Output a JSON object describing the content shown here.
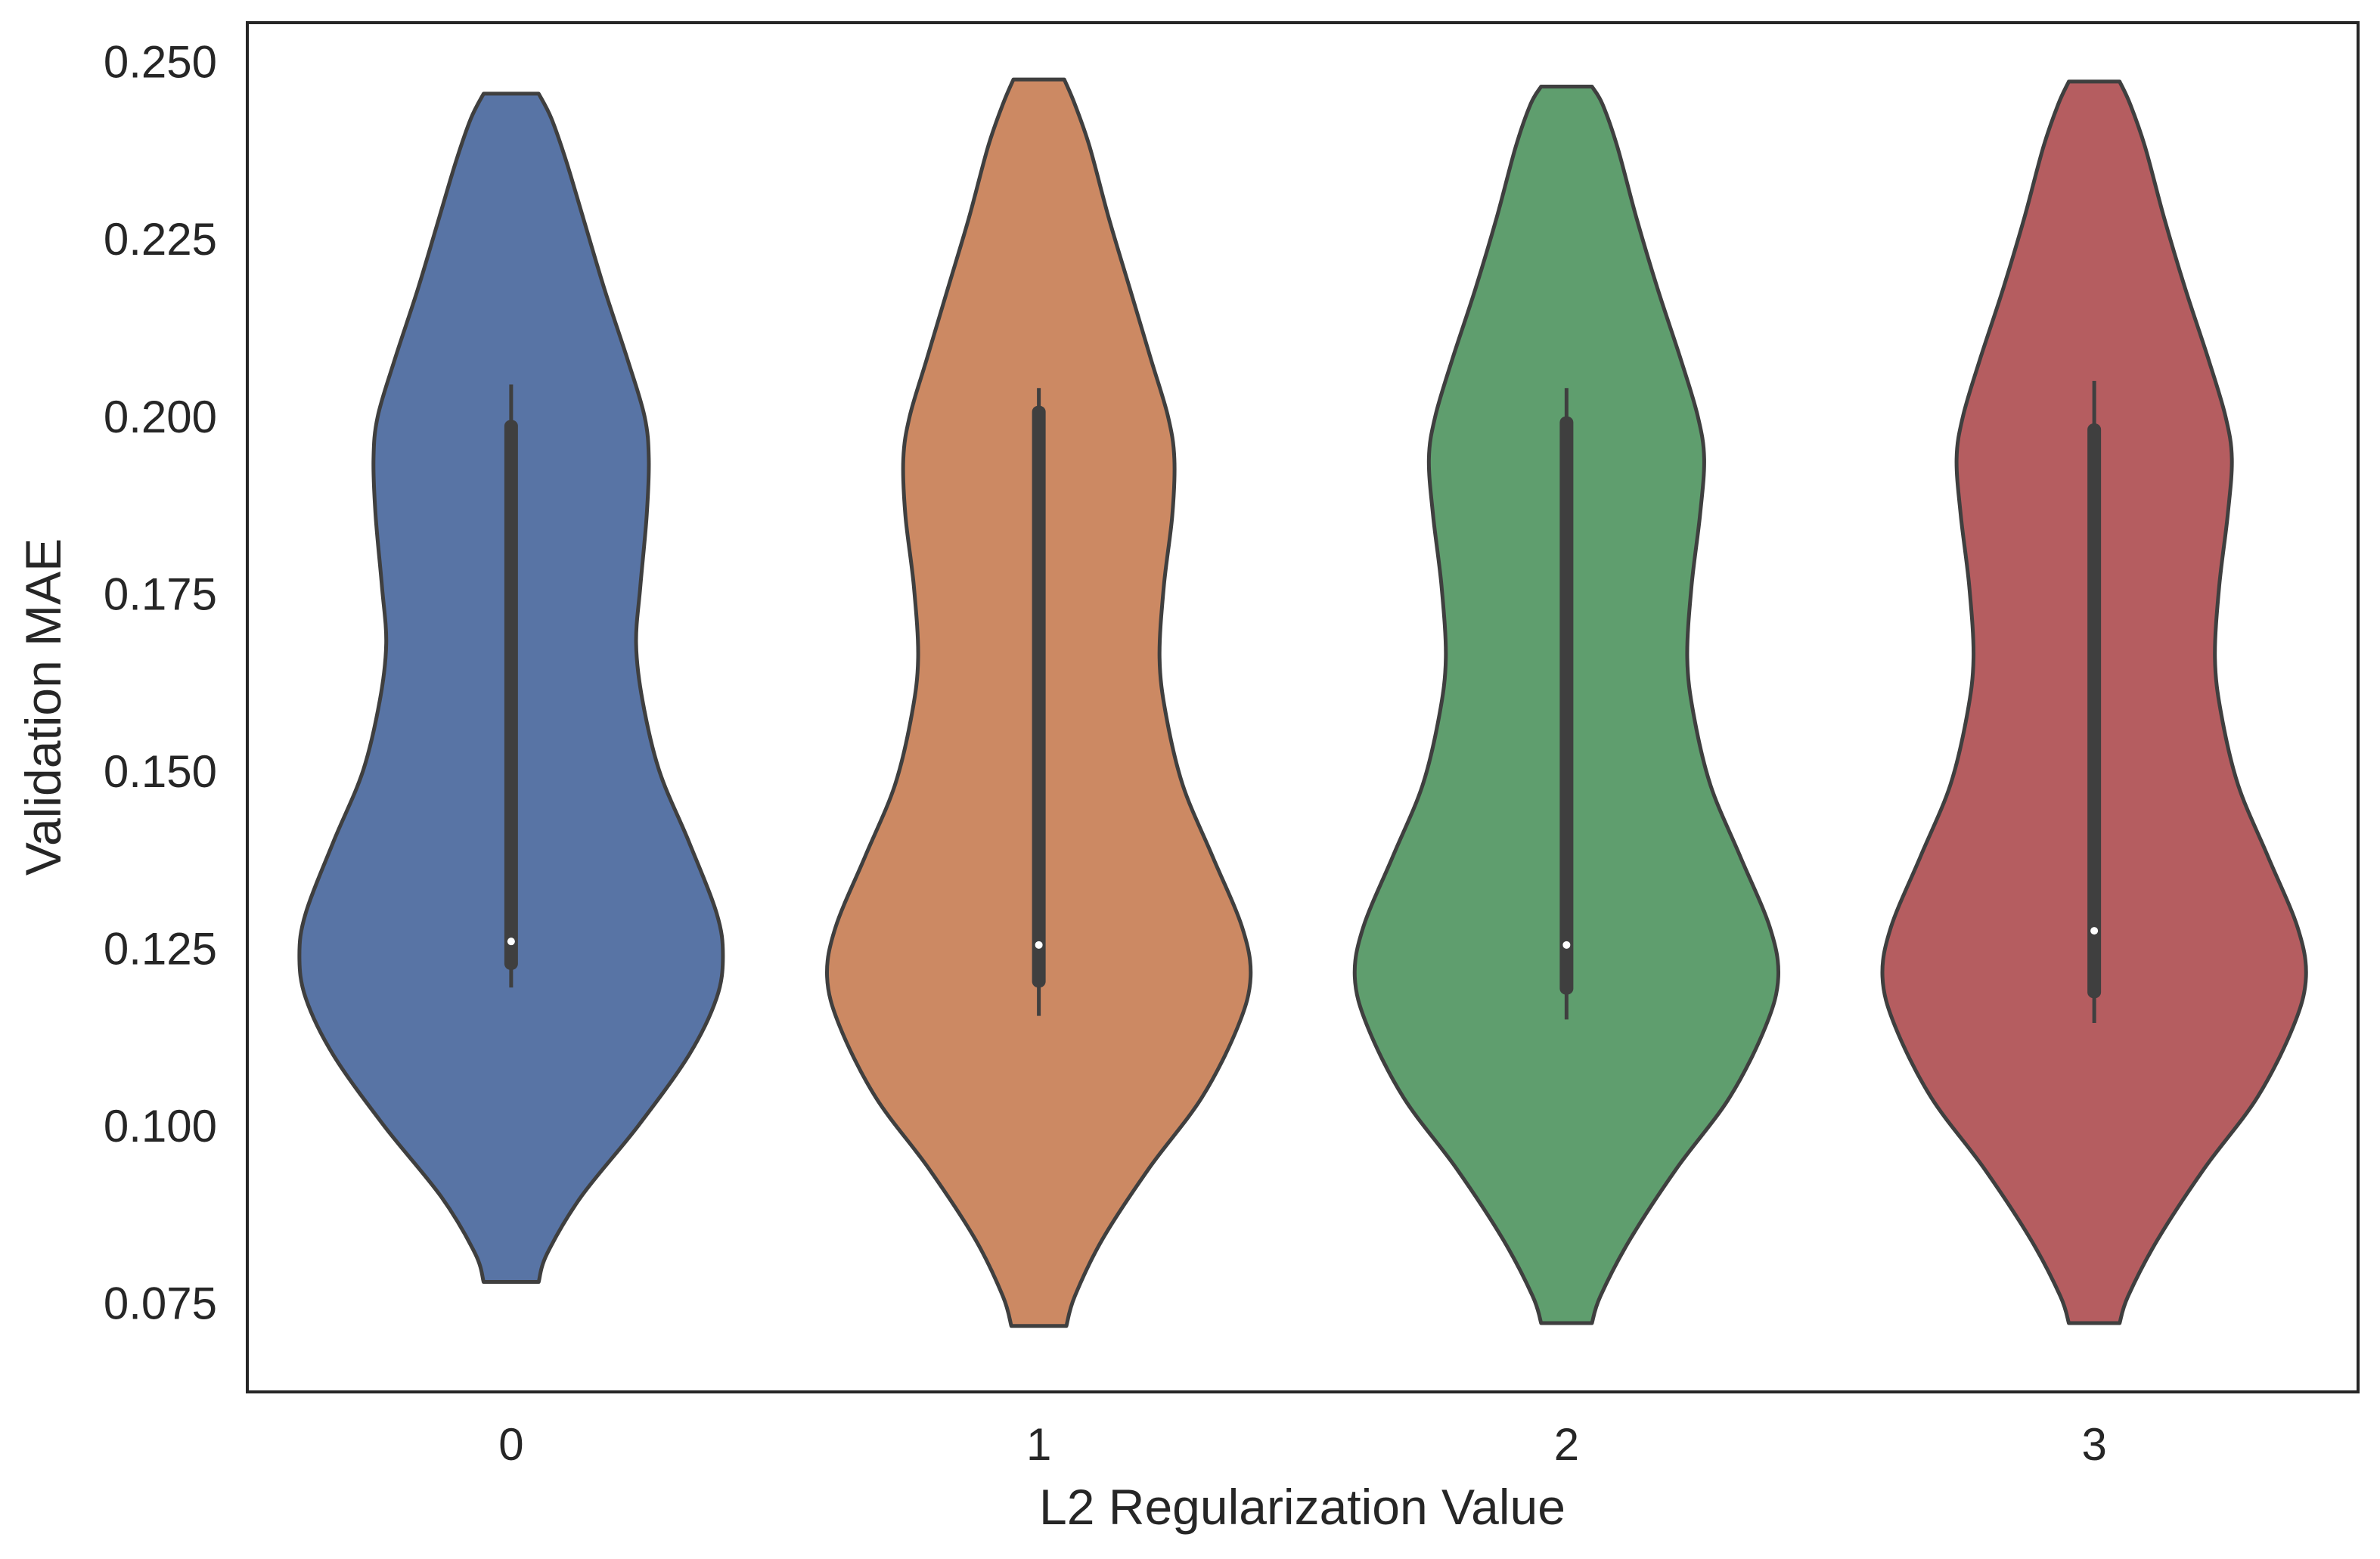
{
  "chart_data": {
    "type": "violin",
    "xlabel": "L2 Regularization Value",
    "ylabel": "Validation MAE",
    "ylim": [
      0.0625,
      0.2555
    ],
    "yticks": [
      "0.075",
      "0.100",
      "0.125",
      "0.150",
      "0.175",
      "0.200",
      "0.225",
      "0.250"
    ],
    "categories": [
      "0",
      "1",
      "2",
      "3"
    ],
    "grid": false,
    "legend": "none",
    "colors": [
      "#5874a5",
      "#cc8963",
      "#5f9e6e",
      "#b55d60"
    ],
    "outline_color": "#3f3f3f",
    "series": [
      {
        "category": "0",
        "min_extent": 0.078,
        "max_extent": 0.2455,
        "whisker_low": 0.1195,
        "q1": 0.122,
        "median": 0.126,
        "q3": 0.1995,
        "whisker_high": 0.2045,
        "density": [
          [
            0.078,
            0.13
          ],
          [
            0.082,
            0.17
          ],
          [
            0.09,
            0.33
          ],
          [
            0.1,
            0.6
          ],
          [
            0.11,
            0.84
          ],
          [
            0.118,
            0.97
          ],
          [
            0.124,
            1.0
          ],
          [
            0.13,
            0.97
          ],
          [
            0.14,
            0.84
          ],
          [
            0.15,
            0.7
          ],
          [
            0.16,
            0.62
          ],
          [
            0.168,
            0.59
          ],
          [
            0.176,
            0.61
          ],
          [
            0.186,
            0.64
          ],
          [
            0.194,
            0.65
          ],
          [
            0.2,
            0.63
          ],
          [
            0.208,
            0.55
          ],
          [
            0.218,
            0.44
          ],
          [
            0.228,
            0.34
          ],
          [
            0.236,
            0.26
          ],
          [
            0.242,
            0.19
          ],
          [
            0.2455,
            0.13
          ]
        ]
      },
      {
        "category": "1",
        "min_extent": 0.0718,
        "max_extent": 0.2475,
        "whisker_low": 0.1155,
        "q1": 0.1195,
        "median": 0.1255,
        "q3": 0.2015,
        "whisker_high": 0.204,
        "density": [
          [
            0.0718,
            0.13
          ],
          [
            0.076,
            0.17
          ],
          [
            0.084,
            0.3
          ],
          [
            0.094,
            0.52
          ],
          [
            0.104,
            0.77
          ],
          [
            0.114,
            0.94
          ],
          [
            0.121,
            1.0
          ],
          [
            0.128,
            0.96
          ],
          [
            0.138,
            0.82
          ],
          [
            0.148,
            0.68
          ],
          [
            0.158,
            0.6
          ],
          [
            0.166,
            0.57
          ],
          [
            0.176,
            0.59
          ],
          [
            0.186,
            0.63
          ],
          [
            0.194,
            0.64
          ],
          [
            0.2,
            0.61
          ],
          [
            0.208,
            0.53
          ],
          [
            0.218,
            0.43
          ],
          [
            0.228,
            0.33
          ],
          [
            0.238,
            0.24
          ],
          [
            0.244,
            0.17
          ],
          [
            0.2475,
            0.12
          ]
        ]
      },
      {
        "category": "2",
        "min_extent": 0.0722,
        "max_extent": 0.2465,
        "whisker_low": 0.115,
        "q1": 0.1185,
        "median": 0.1255,
        "q3": 0.2,
        "whisker_high": 0.204,
        "density": [
          [
            0.0722,
            0.12
          ],
          [
            0.076,
            0.16
          ],
          [
            0.084,
            0.3
          ],
          [
            0.094,
            0.52
          ],
          [
            0.104,
            0.77
          ],
          [
            0.114,
            0.94
          ],
          [
            0.121,
            1.0
          ],
          [
            0.128,
            0.96
          ],
          [
            0.138,
            0.82
          ],
          [
            0.148,
            0.68
          ],
          [
            0.158,
            0.6
          ],
          [
            0.166,
            0.57
          ],
          [
            0.176,
            0.59
          ],
          [
            0.186,
            0.63
          ],
          [
            0.194,
            0.65
          ],
          [
            0.2,
            0.62
          ],
          [
            0.208,
            0.54
          ],
          [
            0.218,
            0.43
          ],
          [
            0.228,
            0.33
          ],
          [
            0.238,
            0.24
          ],
          [
            0.244,
            0.17
          ],
          [
            0.2465,
            0.12
          ]
        ]
      },
      {
        "category": "3",
        "min_extent": 0.0722,
        "max_extent": 0.2472,
        "whisker_low": 0.1145,
        "q1": 0.118,
        "median": 0.1275,
        "q3": 0.199,
        "whisker_high": 0.205,
        "density": [
          [
            0.0722,
            0.12
          ],
          [
            0.076,
            0.16
          ],
          [
            0.084,
            0.3
          ],
          [
            0.094,
            0.52
          ],
          [
            0.104,
            0.77
          ],
          [
            0.114,
            0.94
          ],
          [
            0.121,
            1.0
          ],
          [
            0.128,
            0.96
          ],
          [
            0.138,
            0.82
          ],
          [
            0.148,
            0.68
          ],
          [
            0.158,
            0.6
          ],
          [
            0.166,
            0.57
          ],
          [
            0.176,
            0.59
          ],
          [
            0.186,
            0.63
          ],
          [
            0.194,
            0.65
          ],
          [
            0.2,
            0.62
          ],
          [
            0.208,
            0.54
          ],
          [
            0.218,
            0.43
          ],
          [
            0.228,
            0.33
          ],
          [
            0.238,
            0.24
          ],
          [
            0.244,
            0.17
          ],
          [
            0.2472,
            0.12
          ]
        ]
      }
    ]
  }
}
